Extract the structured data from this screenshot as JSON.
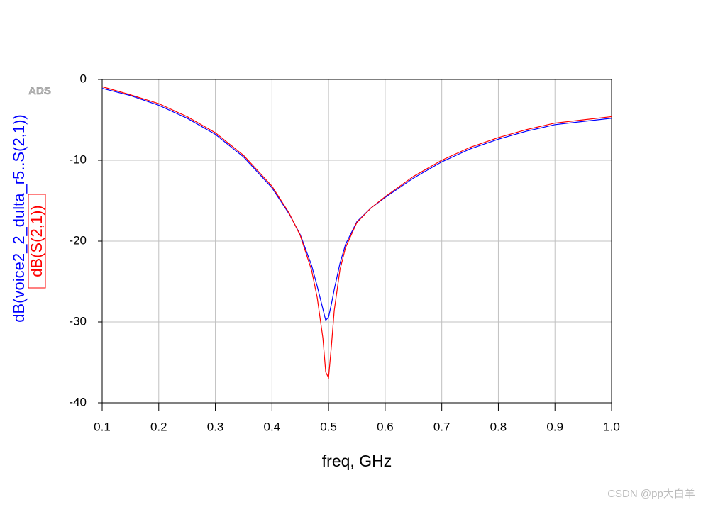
{
  "chart_data": {
    "type": "line",
    "logo": "ADS",
    "watermark": "CSDN @pp大白羊",
    "xlabel": "freq, GHz",
    "x": [
      0.1,
      0.15,
      0.2,
      0.25,
      0.3,
      0.35,
      0.4,
      0.43,
      0.45,
      0.47,
      0.48,
      0.49,
      0.495,
      0.5,
      0.505,
      0.51,
      0.52,
      0.53,
      0.55,
      0.575,
      0.6,
      0.65,
      0.7,
      0.75,
      0.8,
      0.85,
      0.9,
      0.95,
      1.0
    ],
    "series": [
      {
        "name": "dB(voice2_2_dulta_r5..S(2,1))",
        "color": "#0000ff",
        "values": [
          -1.1,
          -2.0,
          -3.2,
          -4.8,
          -6.8,
          -9.6,
          -13.4,
          -16.6,
          -19.2,
          -23.0,
          -25.6,
          -28.4,
          -29.8,
          -29.4,
          -27.8,
          -26.0,
          -22.8,
          -20.4,
          -17.6,
          -15.9,
          -14.6,
          -12.2,
          -10.2,
          -8.6,
          -7.4,
          -6.4,
          -5.6,
          -5.2,
          -4.8
        ]
      },
      {
        "name": "dB(S(2,1))",
        "color": "#ff0000",
        "values": [
          -0.9,
          -1.9,
          -3.0,
          -4.6,
          -6.6,
          -9.4,
          -13.2,
          -16.5,
          -19.3,
          -23.6,
          -27.0,
          -32.0,
          -36.2,
          -36.9,
          -33.0,
          -28.6,
          -23.6,
          -20.8,
          -17.7,
          -15.9,
          -14.5,
          -12.0,
          -10.0,
          -8.4,
          -7.2,
          -6.2,
          -5.4,
          -5.0,
          -4.6
        ]
      }
    ],
    "xlim": [
      0.1,
      1.0
    ],
    "xticks": [
      0.1,
      0.2,
      0.3,
      0.4,
      0.5,
      0.6,
      0.7,
      0.8,
      0.9,
      {
        "value": 1.0,
        "label": "1.0"
      }
    ],
    "ylim": [
      -40,
      0
    ],
    "yticks": [
      0,
      -10,
      -20,
      -30,
      -40
    ],
    "grid": true
  }
}
